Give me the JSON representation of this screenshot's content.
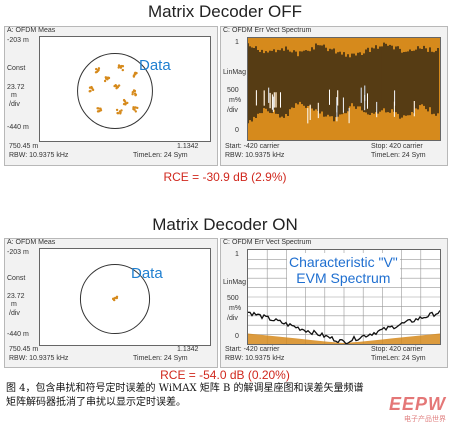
{
  "caption": {
    "line1": "图 4，包含串扰和符号定时误差的 WiMAX 矩阵 B 的解调星座图和误差矢量频谱",
    "line2": "矩阵解码器抵消了串扰以显示定时误差。"
  },
  "logo": {
    "text": "EEPW",
    "subtext": "电子产品世界"
  },
  "chart_data": [
    {
      "type": "scatter",
      "section": "Matrix Decoder OFF",
      "title": "Matrix Decoder OFF",
      "panel_title": "A: OFDM Meas",
      "annotation": "Data",
      "ylabel": "Const",
      "y_ticks": [
        "-203 m",
        "23.72",
        "m",
        "/div",
        "-440 m"
      ],
      "x_ticks": [
        "750.45 m",
        "1.1342"
      ],
      "footer_left": "RBW: 10.9375 kHz",
      "footer_right": "TimeLen: 24 Sym",
      "ring": true,
      "clusters": [
        {
          "x": -0.45,
          "y": 0.55
        },
        {
          "x": 0.15,
          "y": 0.62
        },
        {
          "x": 0.55,
          "y": 0.45
        },
        {
          "x": -0.62,
          "y": 0.05
        },
        {
          "x": 0.05,
          "y": 0.12
        },
        {
          "x": 0.5,
          "y": -0.05
        },
        {
          "x": -0.4,
          "y": -0.48
        },
        {
          "x": 0.12,
          "y": -0.55
        },
        {
          "x": 0.55,
          "y": -0.5
        },
        {
          "x": -0.2,
          "y": 0.3
        },
        {
          "x": 0.3,
          "y": -0.3
        }
      ],
      "point_color": "#d68a1c"
    },
    {
      "type": "area",
      "section": "Matrix Decoder OFF",
      "panel_title": "C: OFDM Err Vect Spectrum",
      "ylabel": "LinMag",
      "y_ticks": [
        "1",
        "500",
        "m%",
        "/div",
        "0"
      ],
      "footer_left": "Start: -420 carrier",
      "footer_mid": "Stop: 420 carrier",
      "footer_left2": "RBW: 10.9375 kHz",
      "footer_right": "TimeLen: 24 Sym",
      "band_top": [
        0.95,
        0.9,
        0.93,
        0.87,
        0.96,
        0.9,
        0.85,
        0.92,
        0.97,
        0.89,
        0.93,
        0.9
      ],
      "band_bottom": [
        0.2,
        0.35,
        0.25,
        0.4,
        0.3,
        0.22,
        0.38,
        0.28,
        0.33,
        0.24,
        0.36,
        0.27
      ],
      "fill_color": "#d68a1c",
      "trace_color": "#111111"
    },
    {
      "type": "scatter",
      "section": "Matrix Decoder ON",
      "title": "Matrix Decoder ON",
      "panel_title": "A: OFDM Meas",
      "annotation": "Data",
      "ylabel": "Const",
      "y_ticks": [
        "-203 m",
        "23.72",
        "m",
        "/div",
        "-440 m"
      ],
      "x_ticks": [
        "750.45 m",
        "1.1342"
      ],
      "footer_left": "RBW: 10.9375 kHz",
      "footer_right": "TimeLen: 24 Sym",
      "ring": true,
      "clusters": [
        {
          "x": 0.02,
          "y": 0.0
        }
      ],
      "point_color": "#d68a1c"
    },
    {
      "type": "line",
      "section": "Matrix Decoder ON",
      "panel_title": "C: OFDM Err Vect Spectrum",
      "annotation": [
        "Characteristic \"V\"",
        "EVM Spectrum"
      ],
      "ylabel": "LinMag",
      "y_ticks": [
        "1",
        "500",
        "m%",
        "/div",
        "0"
      ],
      "footer_left": "Start: -420 carrier",
      "footer_mid": "Stop: 420 carrier",
      "footer_left2": "RBW: 10.9375 kHz",
      "footer_right": "TimeLen: 24 Sym",
      "x": [
        -420,
        -350,
        -280,
        -210,
        -140,
        -70,
        0,
        70,
        140,
        210,
        280,
        350,
        420
      ],
      "y": [
        0.32,
        0.27,
        0.22,
        0.17,
        0.12,
        0.07,
        0.03,
        0.07,
        0.12,
        0.17,
        0.22,
        0.27,
        0.32
      ],
      "ylim": [
        0,
        1
      ],
      "trace_color": "#111111",
      "fill_color": "#d68a1c"
    }
  ],
  "rce": {
    "off": "RCE = -30.9 dB (2.9%)",
    "on": "RCE = -54.0 dB (0.20%)"
  }
}
